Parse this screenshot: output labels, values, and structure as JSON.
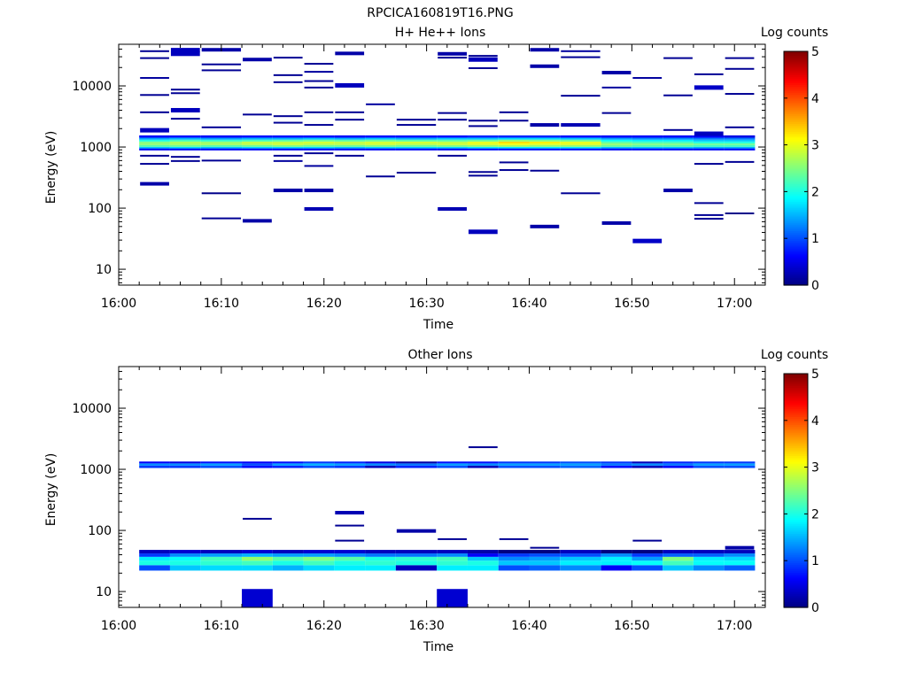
{
  "figure": {
    "title": "RPCICA160819T16.PNG"
  },
  "colors": {
    "colormap": "jet",
    "background": "#ffffff",
    "axis": "#000000"
  },
  "chart_data": [
    {
      "type": "heatmap",
      "title": "H+ He++ Ions",
      "xlabel": "Time",
      "ylabel": "Energy (eV)",
      "colorbar_label": "Log counts",
      "yscale": "log",
      "xlim": [
        "16:00",
        "17:03"
      ],
      "ylim": [
        5.5,
        48000
      ],
      "clim": [
        0,
        5
      ],
      "x_ticks": [
        "16:00",
        "16:10",
        "16:20",
        "16:30",
        "16:40",
        "16:50",
        "17:00"
      ],
      "y_ticks": [
        "10",
        "100",
        "1000",
        "10000"
      ],
      "cbar_ticks": [
        "0",
        "1",
        "2",
        "3",
        "4",
        "5"
      ],
      "time_bins": [
        [
          "16:02",
          "16:05"
        ],
        [
          "16:05",
          "16:08"
        ],
        [
          "16:08",
          "16:12"
        ],
        [
          "16:12",
          "16:15"
        ],
        [
          "16:15",
          "16:18"
        ],
        [
          "16:18",
          "16:21"
        ],
        [
          "16:21",
          "16:24"
        ],
        [
          "16:24",
          "16:27"
        ],
        [
          "16:27",
          "16:31"
        ],
        [
          "16:31",
          "16:34"
        ],
        [
          "16:34",
          "16:37"
        ],
        [
          "16:37",
          "16:40"
        ],
        [
          "16:40",
          "16:43"
        ],
        [
          "16:43",
          "16:47"
        ],
        [
          "16:47",
          "16:50"
        ],
        [
          "16:50",
          "16:53"
        ],
        [
          "16:53",
          "16:56"
        ],
        [
          "16:56",
          "16:59"
        ],
        [
          "16:59",
          "17:02"
        ]
      ],
      "band_edges_eV": [
        880,
        950,
        1010,
        1080,
        1150,
        1230,
        1320,
        1420,
        1550
      ],
      "band_values": [
        [
          0.6,
          1.6,
          2.3,
          2.6,
          2.5,
          2.0,
          1.4,
          0.6
        ],
        [
          0.6,
          1.7,
          2.4,
          2.7,
          2.7,
          2.2,
          1.5,
          0.7
        ],
        [
          0.6,
          1.6,
          2.3,
          2.7,
          2.6,
          2.1,
          1.4,
          0.6
        ],
        [
          0.6,
          1.7,
          2.4,
          2.8,
          2.8,
          2.2,
          1.5,
          0.7
        ],
        [
          0.6,
          1.7,
          2.5,
          2.9,
          2.8,
          2.3,
          1.5,
          0.7
        ],
        [
          0.6,
          1.7,
          2.4,
          2.8,
          2.9,
          2.4,
          1.6,
          0.7
        ],
        [
          0.6,
          1.6,
          2.4,
          2.8,
          2.8,
          2.3,
          1.5,
          0.6
        ],
        [
          0.6,
          1.7,
          2.5,
          2.9,
          2.9,
          2.4,
          1.6,
          0.7
        ],
        [
          0.6,
          1.7,
          2.4,
          2.8,
          2.9,
          2.3,
          1.5,
          0.7
        ],
        [
          0.6,
          1.7,
          2.5,
          2.9,
          2.8,
          2.3,
          1.6,
          0.7
        ],
        [
          0.7,
          1.8,
          2.6,
          3.0,
          3.0,
          2.4,
          1.6,
          0.8
        ],
        [
          0.7,
          1.8,
          2.7,
          3.1,
          3.3,
          2.6,
          1.7,
          0.8
        ],
        [
          0.7,
          1.8,
          2.6,
          3.0,
          3.2,
          2.5,
          1.7,
          0.8
        ],
        [
          0.7,
          1.8,
          2.6,
          3.0,
          3.0,
          2.4,
          1.6,
          0.7
        ],
        [
          0.6,
          1.6,
          2.4,
          2.6,
          2.3,
          1.9,
          1.4,
          0.6
        ],
        [
          0.6,
          1.6,
          2.3,
          2.5,
          2.2,
          1.8,
          1.3,
          0.6
        ],
        [
          0.6,
          1.6,
          2.3,
          2.5,
          2.2,
          1.8,
          1.3,
          0.6
        ],
        [
          0.6,
          1.5,
          2.2,
          2.4,
          2.0,
          1.6,
          1.2,
          0.6
        ],
        [
          0.6,
          1.5,
          2.2,
          2.4,
          2.0,
          1.6,
          1.2,
          0.5
        ]
      ],
      "sparse_cells": [
        [
          0,
          37000,
          0.1
        ],
        [
          0,
          28500,
          0.1
        ],
        [
          0,
          13500,
          0.15
        ],
        [
          0,
          7100,
          0.1
        ],
        [
          0,
          3700,
          0.1
        ],
        [
          0,
          1880,
          0.3
        ],
        [
          0,
          720,
          0.1
        ],
        [
          0,
          530,
          0.1
        ],
        [
          0,
          250,
          0.2
        ],
        [
          1,
          38500,
          0.3
        ],
        [
          1,
          33500,
          0.3
        ],
        [
          1,
          8700,
          0.1
        ],
        [
          1,
          7600,
          0.1
        ],
        [
          1,
          4000,
          0.3
        ],
        [
          1,
          2900,
          0.1
        ],
        [
          1,
          690,
          0.1
        ],
        [
          1,
          590,
          0.1
        ],
        [
          2,
          39000,
          0.2
        ],
        [
          2,
          22500,
          0.1
        ],
        [
          2,
          18000,
          0.1
        ],
        [
          2,
          2100,
          0.1
        ],
        [
          2,
          600,
          0.1
        ],
        [
          2,
          175,
          0.05
        ],
        [
          2,
          68,
          0.1
        ],
        [
          3,
          27000,
          0.2
        ],
        [
          3,
          3400,
          0.1
        ],
        [
          3,
          62,
          0.2
        ],
        [
          4,
          29000,
          0.1
        ],
        [
          4,
          15000,
          0.1
        ],
        [
          4,
          11500,
          0.1
        ],
        [
          4,
          3200,
          0.1
        ],
        [
          4,
          2500,
          0.1
        ],
        [
          4,
          720,
          0.1
        ],
        [
          4,
          590,
          0.15
        ],
        [
          4,
          195,
          0.2
        ],
        [
          5,
          23000,
          0.1
        ],
        [
          5,
          17000,
          0.15
        ],
        [
          5,
          12000,
          0.1
        ],
        [
          5,
          9400,
          0.1
        ],
        [
          5,
          3700,
          0.1
        ],
        [
          5,
          2300,
          0.1
        ],
        [
          5,
          790,
          0.1
        ],
        [
          5,
          490,
          0.15
        ],
        [
          5,
          195,
          0.2
        ],
        [
          5,
          97,
          0.25
        ],
        [
          6,
          34000,
          0.2
        ],
        [
          6,
          10200,
          0.3
        ],
        [
          6,
          3700,
          0.1
        ],
        [
          6,
          2800,
          0.1
        ],
        [
          6,
          720,
          0.1
        ],
        [
          7,
          5000,
          0.15
        ],
        [
          7,
          330,
          0.1
        ],
        [
          8,
          2800,
          0.1
        ],
        [
          8,
          2300,
          0.1
        ],
        [
          8,
          380,
          0.1
        ],
        [
          9,
          33500,
          0.2
        ],
        [
          9,
          29000,
          0.1
        ],
        [
          9,
          3600,
          0.1
        ],
        [
          9,
          2800,
          0.1
        ],
        [
          9,
          720,
          0.1
        ],
        [
          9,
          97,
          0.25
        ],
        [
          10,
          31000,
          0.1
        ],
        [
          10,
          27000,
          0.3
        ],
        [
          10,
          19500,
          0.1
        ],
        [
          10,
          2700,
          0.1
        ],
        [
          10,
          2200,
          0.1
        ],
        [
          10,
          390,
          0.1
        ],
        [
          10,
          340,
          0.1
        ],
        [
          10,
          41,
          0.3
        ],
        [
          11,
          3700,
          0.1
        ],
        [
          11,
          2700,
          0.1
        ],
        [
          11,
          560,
          0.1
        ],
        [
          11,
          420,
          0.1
        ],
        [
          12,
          39000,
          0.2
        ],
        [
          12,
          21000,
          0.2
        ],
        [
          12,
          2300,
          0.2
        ],
        [
          12,
          410,
          0.1
        ],
        [
          12,
          50,
          0.2
        ],
        [
          13,
          37000,
          0.15
        ],
        [
          13,
          29500,
          0.1
        ],
        [
          13,
          6900,
          0.1
        ],
        [
          13,
          2300,
          0.25
        ],
        [
          13,
          175,
          0.1
        ],
        [
          14,
          16500,
          0.2
        ],
        [
          14,
          9400,
          0.15
        ],
        [
          14,
          3600,
          0.1
        ],
        [
          14,
          57,
          0.2
        ],
        [
          15,
          13500,
          0.15
        ],
        [
          15,
          29,
          0.35
        ],
        [
          16,
          28500,
          0.1
        ],
        [
          16,
          7000,
          0.1
        ],
        [
          16,
          1900,
          0.1
        ],
        [
          16,
          195,
          0.2
        ],
        [
          17,
          15500,
          0.1
        ],
        [
          17,
          9400,
          0.35
        ],
        [
          17,
          1650,
          0.3
        ],
        [
          17,
          530,
          0.1
        ],
        [
          17,
          121,
          0.1
        ],
        [
          17,
          77,
          0.1
        ],
        [
          17,
          67,
          0.1
        ],
        [
          18,
          28500,
          0.1
        ],
        [
          18,
          19000,
          0.1
        ],
        [
          18,
          7400,
          0.1
        ],
        [
          18,
          2100,
          0.1
        ],
        [
          18,
          570,
          0.1
        ],
        [
          18,
          82,
          0.05
        ]
      ]
    },
    {
      "type": "heatmap",
      "title": "Other Ions",
      "xlabel": "Time",
      "ylabel": "Energy (eV)",
      "colorbar_label": "Log counts",
      "yscale": "log",
      "xlim": [
        "16:00",
        "17:03"
      ],
      "ylim": [
        5.5,
        48000
      ],
      "clim": [
        0,
        5
      ],
      "x_ticks": [
        "16:00",
        "16:10",
        "16:20",
        "16:30",
        "16:40",
        "16:50",
        "17:00"
      ],
      "y_ticks": [
        "10",
        "100",
        "1000",
        "10000"
      ],
      "cbar_ticks": [
        "0",
        "1",
        "2",
        "3",
        "4",
        "5"
      ],
      "time_bins": [
        [
          "16:02",
          "16:05"
        ],
        [
          "16:05",
          "16:08"
        ],
        [
          "16:08",
          "16:12"
        ],
        [
          "16:12",
          "16:15"
        ],
        [
          "16:15",
          "16:18"
        ],
        [
          "16:18",
          "16:21"
        ],
        [
          "16:21",
          "16:24"
        ],
        [
          "16:24",
          "16:27"
        ],
        [
          "16:27",
          "16:31"
        ],
        [
          "16:31",
          "16:34"
        ],
        [
          "16:34",
          "16:37"
        ],
        [
          "16:37",
          "16:40"
        ],
        [
          "16:40",
          "16:43"
        ],
        [
          "16:43",
          "16:47"
        ],
        [
          "16:47",
          "16:50"
        ],
        [
          "16:50",
          "16:53"
        ],
        [
          "16:53",
          "16:56"
        ],
        [
          "16:56",
          "16:59"
        ],
        [
          "16:59",
          "17:02"
        ]
      ],
      "low_band_edges_eV": [
        22,
        27,
        32,
        37,
        42,
        48
      ],
      "low_band_values": [
        [
          1.0,
          2.0,
          1.8,
          0.9,
          0.3
        ],
        [
          1.6,
          2.0,
          1.9,
          1.3,
          0.4
        ],
        [
          1.7,
          2.1,
          2.2,
          1.4,
          0.3
        ],
        [
          1.7,
          2.2,
          2.6,
          1.5,
          0.4
        ],
        [
          1.5,
          2.0,
          2.3,
          1.4,
          0.3
        ],
        [
          1.7,
          2.2,
          2.5,
          1.4,
          0.4
        ],
        [
          1.8,
          2.0,
          2.3,
          1.3,
          0.4
        ],
        [
          1.8,
          2.1,
          2.0,
          1.2,
          0.3
        ],
        [
          0.3,
          2.0,
          2.1,
          1.2,
          0.3
        ],
        [
          1.8,
          2.1,
          2.2,
          1.3,
          0.3
        ],
        [
          1.8,
          2.0,
          1.6,
          0.6,
          0.2
        ],
        [
          1.0,
          1.6,
          1.3,
          0.9,
          0.0
        ],
        [
          1.1,
          1.6,
          1.4,
          1.0,
          0.0
        ],
        [
          1.3,
          1.8,
          1.6,
          1.0,
          0.3
        ],
        [
          0.6,
          1.8,
          1.8,
          1.3,
          0.0
        ],
        [
          1.0,
          1.9,
          1.4,
          0.9,
          0.0
        ],
        [
          1.6,
          2.2,
          2.5,
          1.1,
          0.3
        ],
        [
          1.3,
          1.9,
          1.8,
          1.1,
          0.3
        ],
        [
          1.1,
          1.9,
          1.7,
          1.3,
          0.3
        ]
      ],
      "high_band_edges_eV": [
        1050,
        1150,
        1250,
        1340
      ],
      "high_band_values": [
        [
          0.9,
          1.3,
          0.6
        ],
        [
          0.9,
          1.3,
          0.5
        ],
        [
          1.0,
          1.4,
          0.7
        ],
        [
          0.7,
          1.0,
          0.6
        ],
        [
          0.8,
          1.4,
          0.7
        ],
        [
          1.0,
          1.5,
          0.9
        ],
        [
          0.9,
          1.4,
          0.8
        ],
        [
          0.3,
          1.3,
          0.5
        ],
        [
          0.8,
          1.2,
          0.2
        ],
        [
          1.0,
          1.4,
          0.7
        ],
        [
          0.3,
          1.3,
          0.7
        ],
        [
          1.0,
          1.4,
          0.9
        ],
        [
          1.0,
          1.4,
          0.9
        ],
        [
          1.1,
          1.4,
          1.0
        ],
        [
          0.7,
          1.2,
          0.9
        ],
        [
          0.3,
          1.3,
          0.3
        ],
        [
          0.6,
          1.2,
          0.8
        ],
        [
          1.0,
          1.4,
          0.9
        ],
        [
          1.0,
          1.4,
          0.9
        ]
      ],
      "sparse_cells": [
        [
          3,
          155,
          0.1
        ],
        [
          6,
          195,
          0.25
        ],
        [
          6,
          120,
          0.1
        ],
        [
          6,
          68,
          0.1
        ],
        [
          8,
          98,
          0.2
        ],
        [
          9,
          72,
          0.1
        ],
        [
          10,
          2300,
          0.1
        ],
        [
          11,
          72,
          0.1
        ],
        [
          12,
          52,
          0.1
        ],
        [
          15,
          68,
          0.1
        ],
        [
          18,
          52,
          0.2
        ]
      ],
      "blocks": [
        {
          "t0": "16:12",
          "t1": "16:15",
          "e0": 5.5,
          "e1": 11,
          "value": 0.4
        },
        {
          "t0": "16:31",
          "t1": "16:34",
          "e0": 5.5,
          "e1": 11,
          "value": 0.4
        }
      ]
    }
  ]
}
